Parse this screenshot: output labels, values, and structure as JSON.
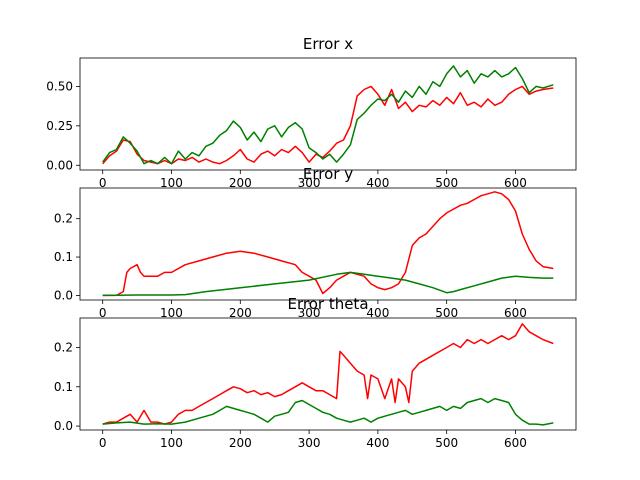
{
  "chart_data": [
    {
      "type": "line",
      "title": "Error x",
      "xlim": [
        -33,
        688
      ],
      "ylim": [
        -0.03,
        0.68
      ],
      "xticks": [
        "0",
        "100",
        "200",
        "300",
        "400",
        "500",
        "600"
      ],
      "yticks": [
        "0.00",
        "0.25",
        "0.50"
      ],
      "grid": false,
      "series": [
        {
          "color": "#ff0000",
          "x": [
            0,
            10,
            20,
            30,
            40,
            50,
            60,
            70,
            80,
            90,
            100,
            110,
            120,
            130,
            140,
            150,
            160,
            170,
            180,
            190,
            200,
            210,
            220,
            230,
            240,
            250,
            260,
            270,
            280,
            290,
            300,
            310,
            320,
            330,
            340,
            350,
            360,
            370,
            380,
            390,
            400,
            410,
            420,
            430,
            440,
            450,
            460,
            470,
            480,
            490,
            500,
            510,
            520,
            530,
            540,
            550,
            560,
            570,
            580,
            590,
            600,
            610,
            620,
            630,
            640,
            655
          ],
          "y": [
            0.01,
            0.06,
            0.09,
            0.16,
            0.15,
            0.07,
            0.03,
            0.02,
            0.01,
            0.03,
            0.01,
            0.04,
            0.03,
            0.05,
            0.02,
            0.04,
            0.02,
            0.01,
            0.03,
            0.06,
            0.1,
            0.04,
            0.02,
            0.07,
            0.09,
            0.06,
            0.1,
            0.08,
            0.12,
            0.08,
            0.02,
            0.07,
            0.05,
            0.09,
            0.14,
            0.16,
            0.25,
            0.44,
            0.48,
            0.5,
            0.45,
            0.38,
            0.48,
            0.36,
            0.4,
            0.34,
            0.38,
            0.37,
            0.41,
            0.38,
            0.43,
            0.39,
            0.46,
            0.38,
            0.4,
            0.37,
            0.42,
            0.38,
            0.4,
            0.45,
            0.48,
            0.5,
            0.45,
            0.47,
            0.48,
            0.49
          ]
        },
        {
          "color": "#008000",
          "x": [
            0,
            10,
            20,
            30,
            40,
            50,
            60,
            70,
            80,
            90,
            100,
            110,
            120,
            130,
            140,
            150,
            160,
            170,
            180,
            190,
            200,
            210,
            220,
            230,
            240,
            250,
            260,
            270,
            280,
            290,
            300,
            310,
            320,
            330,
            340,
            350,
            360,
            370,
            380,
            390,
            400,
            410,
            420,
            430,
            440,
            450,
            460,
            470,
            480,
            490,
            500,
            510,
            520,
            530,
            540,
            550,
            560,
            570,
            580,
            590,
            600,
            610,
            620,
            630,
            640,
            655
          ],
          "y": [
            0.02,
            0.08,
            0.1,
            0.18,
            0.14,
            0.09,
            0.01,
            0.03,
            0.01,
            0.05,
            0.01,
            0.09,
            0.04,
            0.08,
            0.06,
            0.12,
            0.14,
            0.19,
            0.22,
            0.28,
            0.24,
            0.16,
            0.21,
            0.15,
            0.23,
            0.25,
            0.18,
            0.24,
            0.27,
            0.23,
            0.11,
            0.08,
            0.04,
            0.07,
            0.02,
            0.07,
            0.13,
            0.29,
            0.33,
            0.38,
            0.42,
            0.41,
            0.45,
            0.4,
            0.47,
            0.43,
            0.5,
            0.45,
            0.53,
            0.5,
            0.58,
            0.63,
            0.56,
            0.6,
            0.52,
            0.58,
            0.56,
            0.6,
            0.56,
            0.58,
            0.62,
            0.55,
            0.46,
            0.5,
            0.49,
            0.51
          ]
        }
      ]
    },
    {
      "type": "line",
      "title": "Error y",
      "xlim": [
        -33,
        688
      ],
      "ylim": [
        -0.012,
        0.28
      ],
      "xticks": [
        "0",
        "100",
        "200",
        "300",
        "400",
        "500",
        "600"
      ],
      "yticks": [
        "0.0",
        "0.1",
        "0.2"
      ],
      "grid": false,
      "series": [
        {
          "color": "#ff0000",
          "x": [
            0,
            10,
            20,
            30,
            35,
            40,
            50,
            55,
            60,
            70,
            80,
            90,
            100,
            120,
            140,
            160,
            180,
            200,
            220,
            240,
            260,
            280,
            290,
            300,
            310,
            320,
            330,
            340,
            350,
            360,
            370,
            380,
            390,
            400,
            410,
            420,
            430,
            440,
            450,
            460,
            470,
            480,
            490,
            500,
            510,
            520,
            530,
            540,
            550,
            560,
            570,
            580,
            590,
            600,
            610,
            620,
            630,
            640,
            655
          ],
          "y": [
            0.0,
            0.0,
            0.0,
            0.01,
            0.06,
            0.07,
            0.08,
            0.06,
            0.05,
            0.05,
            0.05,
            0.06,
            0.06,
            0.08,
            0.09,
            0.1,
            0.11,
            0.115,
            0.11,
            0.1,
            0.09,
            0.08,
            0.06,
            0.05,
            0.04,
            0.005,
            0.02,
            0.04,
            0.05,
            0.06,
            0.055,
            0.05,
            0.03,
            0.02,
            0.015,
            0.02,
            0.03,
            0.06,
            0.13,
            0.15,
            0.16,
            0.18,
            0.2,
            0.215,
            0.225,
            0.235,
            0.24,
            0.25,
            0.26,
            0.265,
            0.27,
            0.265,
            0.25,
            0.22,
            0.16,
            0.12,
            0.09,
            0.075,
            0.07
          ]
        },
        {
          "color": "#008000",
          "x": [
            0,
            50,
            100,
            120,
            150,
            200,
            250,
            300,
            340,
            360,
            380,
            400,
            420,
            440,
            460,
            480,
            500,
            510,
            520,
            540,
            560,
            580,
            600,
            620,
            640,
            655
          ],
          "y": [
            0.0,
            0.001,
            0.001,
            0.002,
            0.01,
            0.02,
            0.03,
            0.04,
            0.055,
            0.06,
            0.055,
            0.05,
            0.045,
            0.04,
            0.03,
            0.02,
            0.007,
            0.01,
            0.015,
            0.025,
            0.035,
            0.045,
            0.05,
            0.047,
            0.045,
            0.045
          ]
        }
      ]
    },
    {
      "type": "line",
      "title": "Error theta",
      "xlim": [
        -33,
        688
      ],
      "ylim": [
        -0.01,
        0.275
      ],
      "xticks": [
        "0",
        "100",
        "200",
        "300",
        "400",
        "500",
        "600"
      ],
      "yticks": [
        "0.0",
        "0.1",
        "0.2"
      ],
      "grid": false,
      "series": [
        {
          "color": "#ff0000",
          "x": [
            0,
            10,
            20,
            30,
            40,
            50,
            60,
            70,
            80,
            90,
            100,
            110,
            120,
            130,
            140,
            150,
            160,
            170,
            180,
            190,
            200,
            210,
            220,
            230,
            240,
            250,
            260,
            270,
            280,
            290,
            300,
            310,
            320,
            330,
            340,
            345,
            350,
            360,
            370,
            380,
            385,
            390,
            400,
            410,
            420,
            425,
            430,
            440,
            445,
            450,
            460,
            470,
            480,
            490,
            500,
            510,
            520,
            530,
            540,
            550,
            560,
            570,
            580,
            590,
            600,
            610,
            620,
            630,
            640,
            655
          ],
          "y": [
            0.005,
            0.01,
            0.01,
            0.02,
            0.03,
            0.01,
            0.04,
            0.01,
            0.01,
            0.005,
            0.01,
            0.03,
            0.04,
            0.04,
            0.05,
            0.06,
            0.07,
            0.08,
            0.09,
            0.1,
            0.095,
            0.085,
            0.09,
            0.08,
            0.085,
            0.075,
            0.08,
            0.09,
            0.1,
            0.11,
            0.1,
            0.09,
            0.09,
            0.08,
            0.07,
            0.19,
            0.18,
            0.16,
            0.14,
            0.13,
            0.07,
            0.13,
            0.12,
            0.07,
            0.12,
            0.06,
            0.12,
            0.1,
            0.06,
            0.14,
            0.16,
            0.17,
            0.18,
            0.19,
            0.2,
            0.21,
            0.2,
            0.22,
            0.21,
            0.22,
            0.21,
            0.22,
            0.23,
            0.22,
            0.23,
            0.26,
            0.24,
            0.23,
            0.22,
            0.21
          ]
        },
        {
          "color": "#008000",
          "x": [
            0,
            20,
            40,
            60,
            80,
            100,
            120,
            140,
            160,
            170,
            180,
            190,
            200,
            210,
            220,
            230,
            240,
            250,
            260,
            270,
            280,
            290,
            300,
            310,
            320,
            330,
            340,
            350,
            360,
            370,
            380,
            390,
            400,
            410,
            420,
            430,
            440,
            450,
            460,
            470,
            480,
            490,
            500,
            510,
            520,
            530,
            540,
            550,
            560,
            570,
            580,
            590,
            600,
            610,
            620,
            630,
            640,
            655
          ],
          "y": [
            0.005,
            0.008,
            0.01,
            0.005,
            0.006,
            0.005,
            0.01,
            0.02,
            0.03,
            0.04,
            0.05,
            0.045,
            0.04,
            0.035,
            0.03,
            0.02,
            0.01,
            0.025,
            0.03,
            0.035,
            0.06,
            0.065,
            0.055,
            0.045,
            0.035,
            0.03,
            0.02,
            0.015,
            0.01,
            0.015,
            0.02,
            0.01,
            0.02,
            0.025,
            0.03,
            0.035,
            0.04,
            0.03,
            0.035,
            0.04,
            0.045,
            0.05,
            0.04,
            0.05,
            0.045,
            0.06,
            0.065,
            0.07,
            0.06,
            0.07,
            0.065,
            0.06,
            0.03,
            0.015,
            0.005,
            0.005,
            0.003,
            0.008
          ]
        }
      ]
    }
  ]
}
